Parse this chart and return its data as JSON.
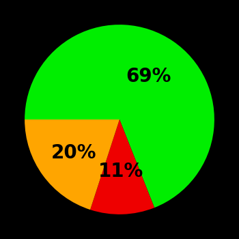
{
  "slices": [
    69,
    11,
    20
  ],
  "colors": [
    "#00ee00",
    "#ee0000",
    "#ffa500"
  ],
  "labels": [
    "69%",
    "11%",
    "20%"
  ],
  "background_color": "#000000",
  "startangle": 180,
  "label_fontsize": 20,
  "label_fontweight": "bold",
  "label_radii": [
    0.55,
    0.55,
    0.6
  ]
}
